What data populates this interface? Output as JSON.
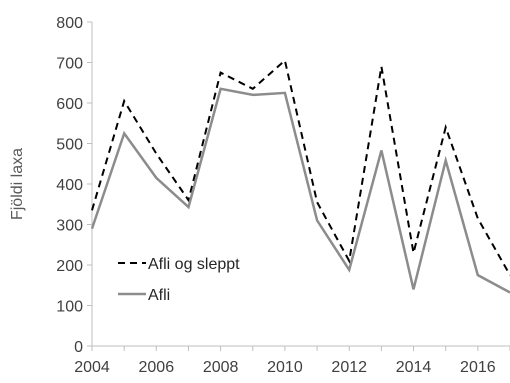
{
  "chart_data": {
    "type": "line",
    "x": [
      2004,
      2005,
      2006,
      2007,
      2008,
      2009,
      2010,
      2011,
      2012,
      2013,
      2014,
      2015,
      2016,
      2017
    ],
    "series": [
      {
        "name": "Afli og sleppt",
        "values": [
          335,
          605,
          475,
          360,
          675,
          635,
          705,
          355,
          210,
          690,
          230,
          540,
          315,
          175
        ],
        "color": "#000000",
        "dash": "dashed"
      },
      {
        "name": "Afli",
        "values": [
          290,
          525,
          415,
          343,
          635,
          620,
          625,
          310,
          188,
          483,
          140,
          458,
          175,
          132
        ],
        "color": "#8c8c8c",
        "dash": "solid"
      }
    ],
    "title": "",
    "xlabel": "",
    "ylabel": "Fjöldi laxa",
    "xlim": [
      2004,
      2017
    ],
    "ylim": [
      0,
      800
    ],
    "yticks": [
      0,
      100,
      200,
      300,
      400,
      500,
      600,
      700,
      800
    ],
    "xticks": [
      2004,
      2006,
      2008,
      2010,
      2012,
      2014,
      2016
    ],
    "grid": false,
    "legend_position": "lower-left"
  }
}
